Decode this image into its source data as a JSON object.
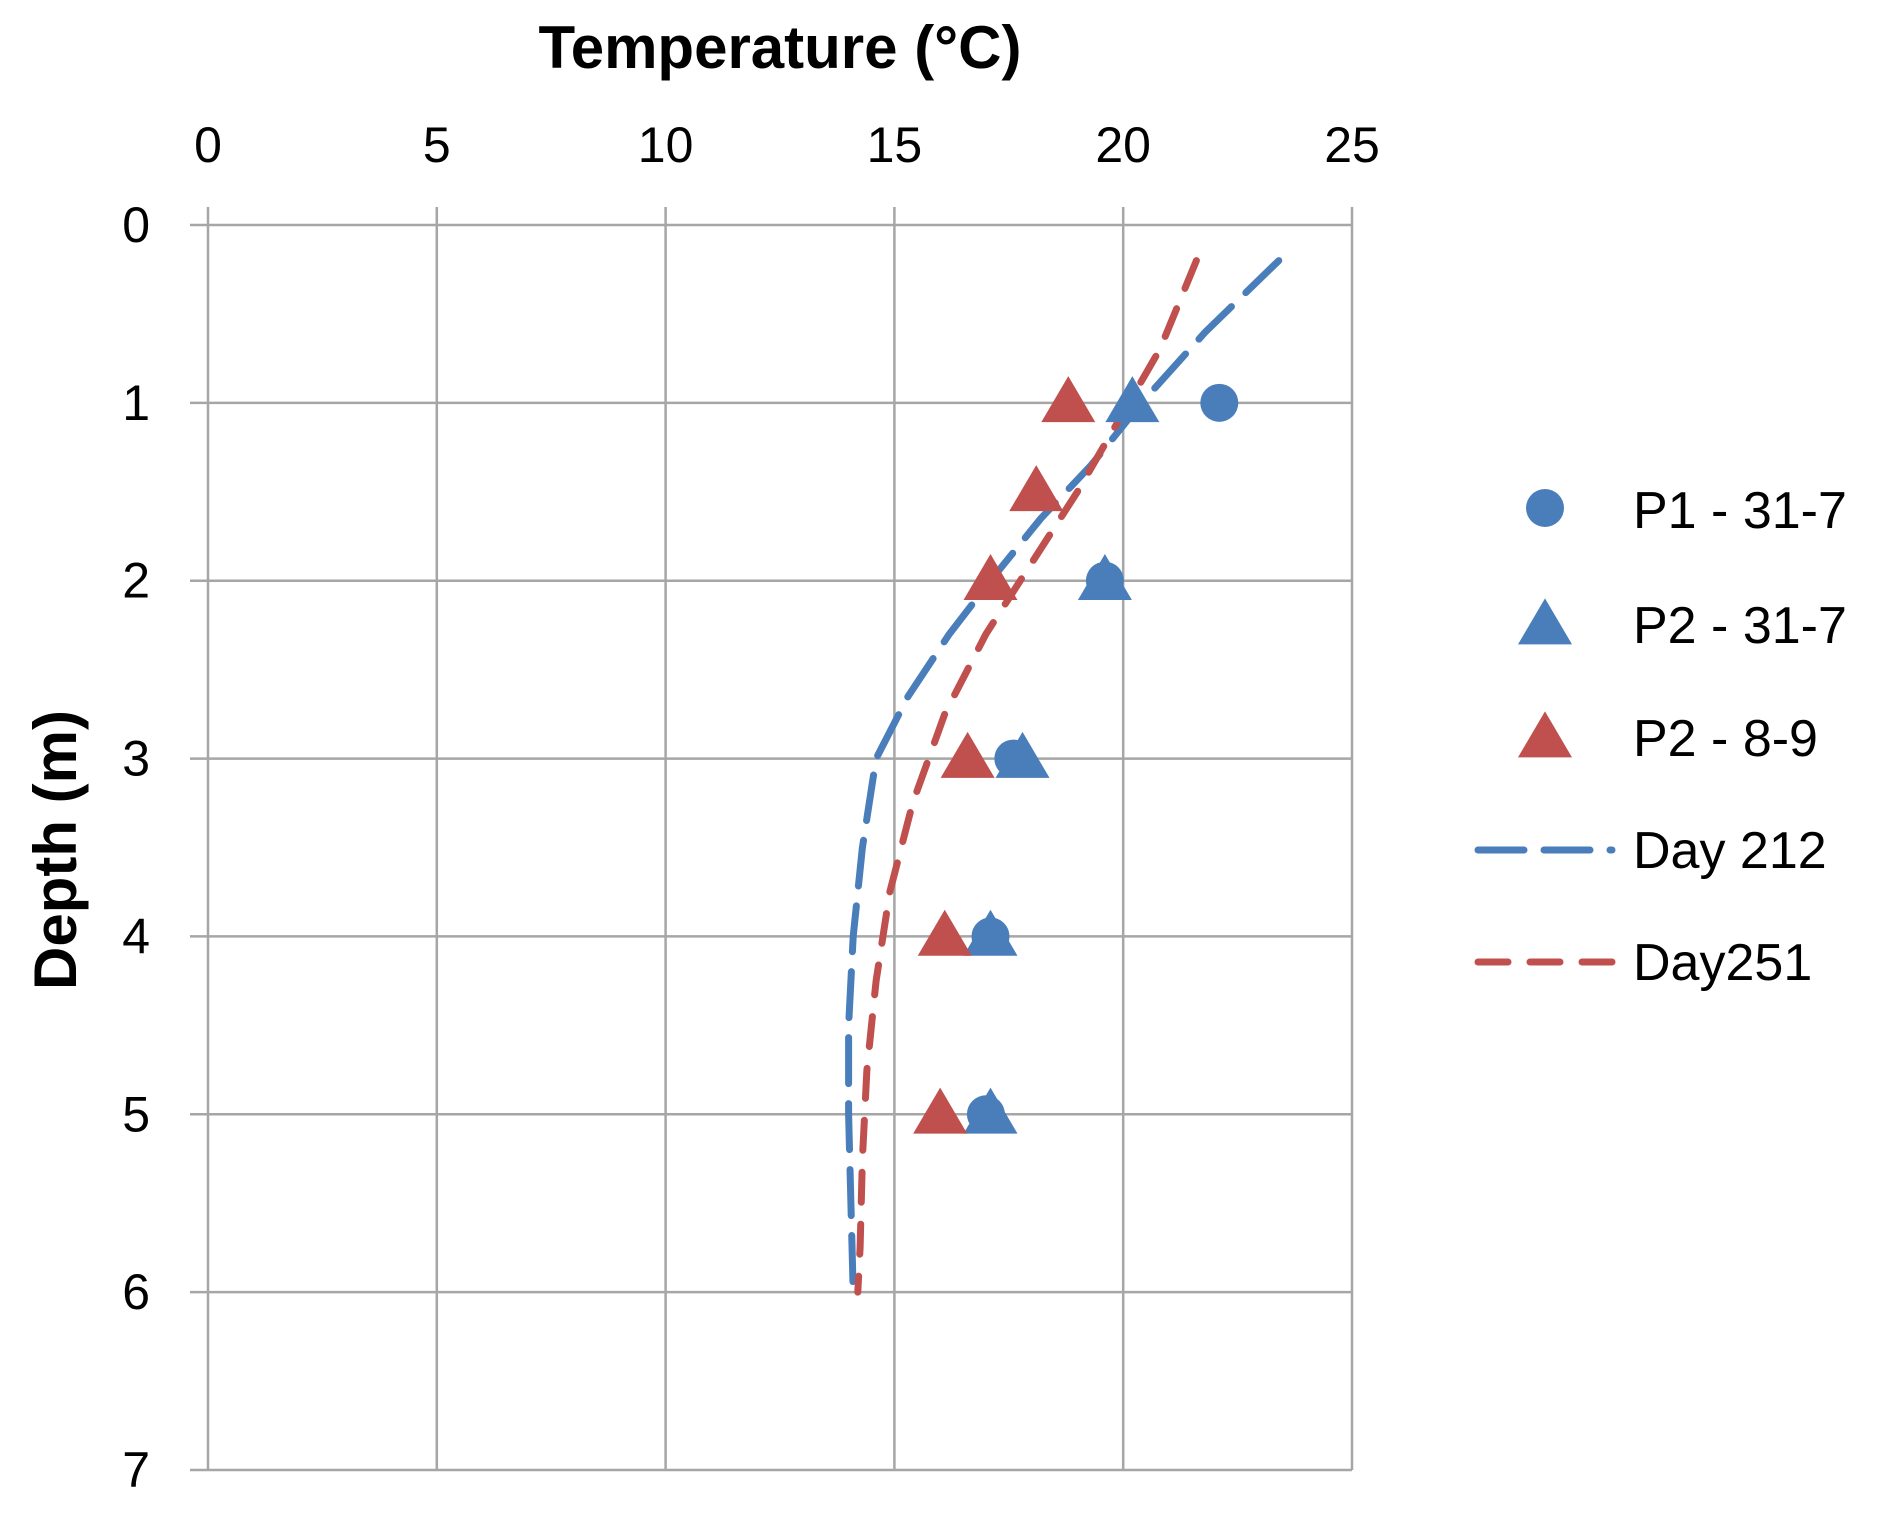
{
  "chart_data": {
    "type": "scatter",
    "title": "",
    "xlabel": "Temperature (°C)",
    "ylabel": "Depth (m)",
    "x_axis_position": "top",
    "y_axis_reversed": true,
    "xlim": [
      0,
      25
    ],
    "ylim": [
      0,
      7
    ],
    "x_ticks": [
      0,
      5,
      10,
      15,
      20,
      25
    ],
    "y_ticks": [
      0,
      1,
      2,
      3,
      4,
      5,
      6,
      7
    ],
    "grid": true,
    "legend_position": "right",
    "series": [
      {
        "name": "P1 - 31-7",
        "kind": "marker",
        "marker": "circle",
        "color": "#4a7ebb",
        "points": [
          [
            22.1,
            1
          ],
          [
            19.6,
            2
          ],
          [
            17.6,
            3
          ],
          [
            17.1,
            4
          ],
          [
            17.0,
            5
          ]
        ]
      },
      {
        "name": "P2 - 31-7",
        "kind": "marker",
        "marker": "triangle",
        "color": "#4a7ebb",
        "points": [
          [
            20.2,
            1
          ],
          [
            19.6,
            2
          ],
          [
            17.8,
            3
          ],
          [
            17.1,
            4
          ],
          [
            17.1,
            5
          ]
        ]
      },
      {
        "name": "P2 - 8-9",
        "kind": "marker",
        "marker": "triangle",
        "color": "#c0504d",
        "points": [
          [
            18.8,
            1
          ],
          [
            18.1,
            1.5
          ],
          [
            17.1,
            2
          ],
          [
            16.6,
            3
          ],
          [
            16.1,
            4
          ],
          [
            16.0,
            5
          ]
        ]
      },
      {
        "name": "Day 212",
        "kind": "line",
        "dash": "long",
        "color": "#4a7ebb",
        "points": [
          [
            23.4,
            0.2
          ],
          [
            21.8,
            0.6
          ],
          [
            20.4,
            1.0
          ],
          [
            19.3,
            1.35
          ],
          [
            18.2,
            1.65
          ],
          [
            17.1,
            2.0
          ],
          [
            16.2,
            2.3
          ],
          [
            15.3,
            2.65
          ],
          [
            14.6,
            3.0
          ],
          [
            14.3,
            3.5
          ],
          [
            14.1,
            4.0
          ],
          [
            14.0,
            4.5
          ],
          [
            14.0,
            5.0
          ],
          [
            14.05,
            5.5
          ],
          [
            14.1,
            6.0
          ]
        ]
      },
      {
        "name": "Day251",
        "kind": "line",
        "dash": "short",
        "color": "#c0504d",
        "points": [
          [
            21.6,
            0.2
          ],
          [
            20.8,
            0.7
          ],
          [
            19.9,
            1.1
          ],
          [
            19.0,
            1.5
          ],
          [
            18.0,
            1.9
          ],
          [
            17.0,
            2.3
          ],
          [
            16.1,
            2.75
          ],
          [
            15.4,
            3.25
          ],
          [
            14.9,
            3.75
          ],
          [
            14.6,
            4.25
          ],
          [
            14.4,
            4.75
          ],
          [
            14.3,
            5.25
          ],
          [
            14.25,
            5.75
          ],
          [
            14.2,
            6.0
          ]
        ]
      }
    ]
  }
}
